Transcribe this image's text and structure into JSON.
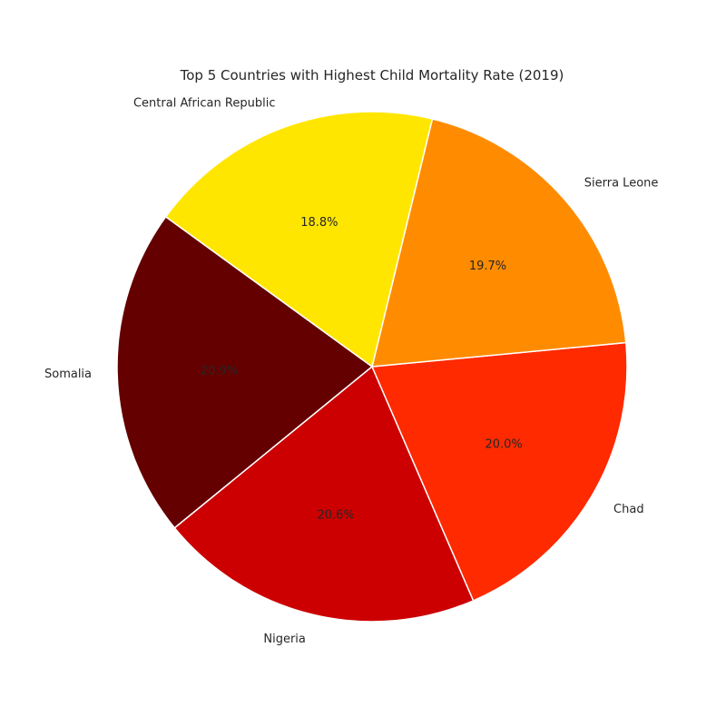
{
  "chart_data": {
    "type": "pie",
    "title": "Top 5 Countries with Highest Child Mortality Rate (2019)",
    "slices": [
      {
        "label": "Somalia",
        "percent": 20.9,
        "percent_label": "20.9%",
        "color": "#640000"
      },
      {
        "label": "Nigeria",
        "percent": 20.6,
        "percent_label": "20.6%",
        "color": "#cc0000"
      },
      {
        "label": "Chad",
        "percent": 20.0,
        "percent_label": "20.0%",
        "color": "#ff2a00"
      },
      {
        "label": "Sierra Leone",
        "percent": 19.7,
        "percent_label": "19.7%",
        "color": "#ff8c00"
      },
      {
        "label": "Central African Republic",
        "percent": 18.8,
        "percent_label": "18.8%",
        "color": "#ffe600"
      }
    ],
    "start_angle_deg": 144,
    "direction": "counterclockwise"
  }
}
